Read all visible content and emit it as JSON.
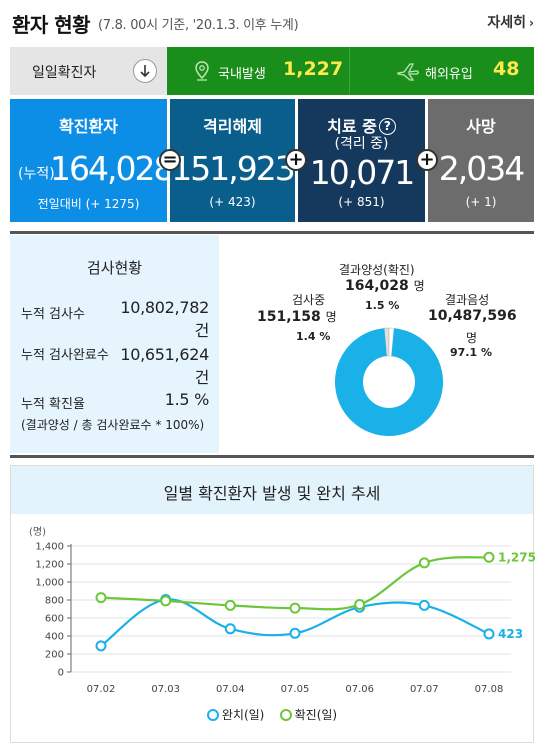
{
  "header": {
    "title": "환자 현황",
    "subtitle": "(7.8. 00시 기준, '20.1.3. 이후 누계)",
    "more_label": "자세히"
  },
  "daily": {
    "label": "일일확진자",
    "domestic_label": "국내발생",
    "domestic_value": "1,227",
    "overseas_label": "해외유입",
    "overseas_value": "48"
  },
  "stats": {
    "confirmed": {
      "title": "확진환자",
      "prefix": "(누적)",
      "value": "164,028",
      "change": "전일대비 (+ 1275)"
    },
    "released": {
      "title": "격리해제",
      "value": "151,923",
      "change": "(+ 423)"
    },
    "treating": {
      "title": "치료 중",
      "subtitle": "(격리 중)",
      "value": "10,071",
      "change": "(+ 851)",
      "help": "?"
    },
    "deaths": {
      "title": "사망",
      "value": "2,034",
      "change": "(+ 1)"
    },
    "op_equals": "=",
    "op_plus": "+"
  },
  "tests": {
    "title": "검사현황",
    "rows": [
      {
        "label": "누적 검사수",
        "value": "10,802,782",
        "unit": "건"
      },
      {
        "label": "누적 검사완료수",
        "value": "10,651,624",
        "unit": "건"
      },
      {
        "label": "누적 확진율",
        "value": "1.5 %",
        "unit": ""
      }
    ],
    "note": "(결과양성 / 총 검사완료수 * 100%)",
    "pie": {
      "positive": {
        "label": "결과양성(확진)",
        "value": "164,028",
        "unit": "명",
        "pct": "1.5 %",
        "share": 1.5
      },
      "testing": {
        "label": "검사중",
        "value": "151,158",
        "unit": "명",
        "pct": "1.4 %",
        "share": 1.4
      },
      "negative": {
        "label": "결과음성",
        "value": "10,487,596",
        "unit": "명",
        "pct": "97.1 %",
        "share": 97.1
      },
      "colors": {
        "negative": "#1ab0e8",
        "positive": "#ffffff",
        "testing": "#e0e0e0"
      }
    }
  },
  "trend": {
    "title": "일별 확진환자 발생 및 완치 추세",
    "y_unit": "(명)",
    "legend_released": "완치(일)",
    "legend_confirmed": "확진(일)"
  },
  "chart_data": {
    "type": "line",
    "x": [
      "07.02",
      "07.03",
      "07.04",
      "07.05",
      "07.06",
      "07.07",
      "07.08"
    ],
    "ylim": [
      0,
      1400
    ],
    "yticks": [
      "0",
      "200",
      "400",
      "600",
      "800",
      "1,000",
      "1,200",
      "1,400"
    ],
    "grid": true,
    "legend_position": "bottom",
    "series": [
      {
        "name": "완치(일)",
        "color": "#1ab0e8",
        "values": [
          290,
          805,
          480,
          430,
          720,
          740,
          423
        ],
        "end_label": "423"
      },
      {
        "name": "확진(일)",
        "color": "#6cc63a",
        "values": [
          826,
          790,
          740,
          710,
          750,
          1212,
          1275
        ],
        "end_label": "1,275"
      }
    ]
  }
}
